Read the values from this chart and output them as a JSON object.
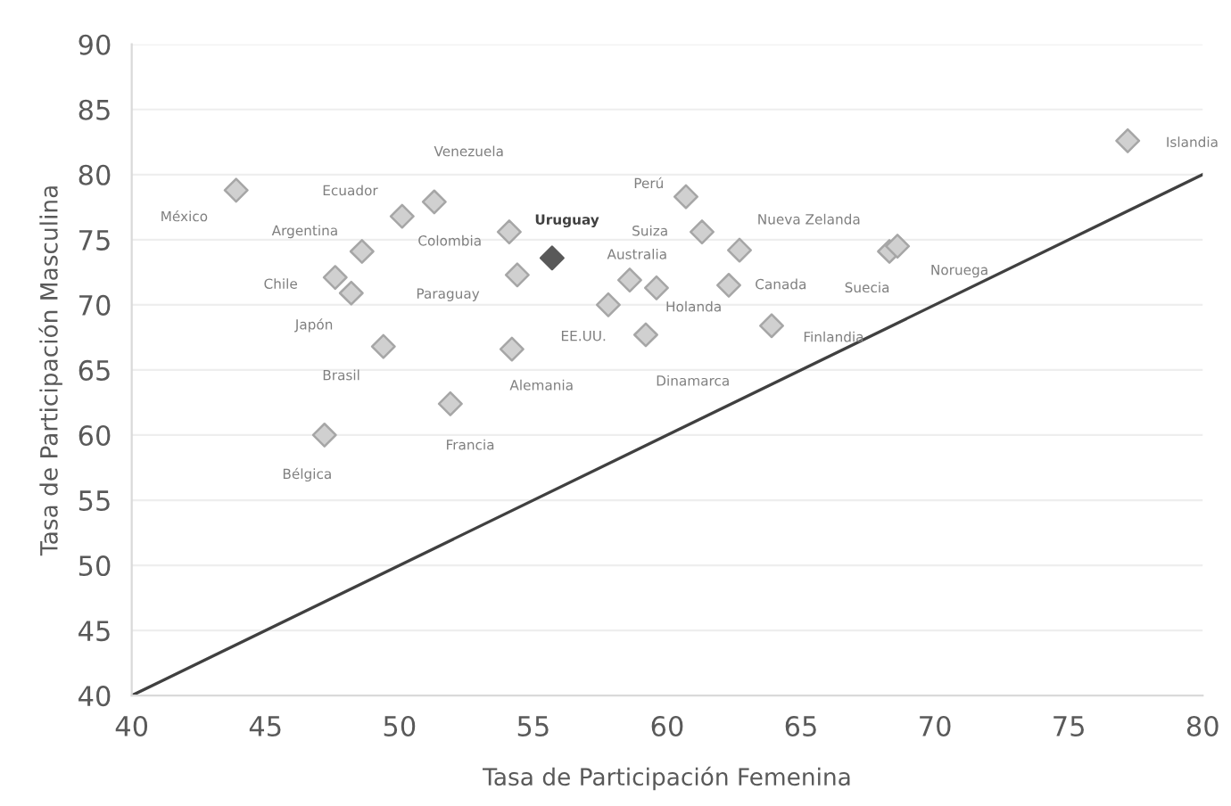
{
  "chart_data": {
    "type": "scatter",
    "xlabel": "Tasa de Participación Femenina",
    "ylabel": "Tasa de Participación Masculina",
    "xlim": [
      40,
      80
    ],
    "xticks": [
      40,
      45,
      50,
      55,
      60,
      65,
      70,
      75,
      80
    ],
    "ylim": [
      40,
      90
    ],
    "yticks": [
      40,
      45,
      50,
      55,
      60,
      65,
      70,
      75,
      80,
      85,
      90
    ],
    "grid": "y",
    "legend": false,
    "marker": "diamond",
    "series": [
      {
        "name": "México",
        "color": "#d0d0d0",
        "x": [
          43.9
        ],
        "values": [
          78.8
        ]
      },
      {
        "name": "Ecuador",
        "color": "#d0d0d0",
        "x": [
          50.1
        ],
        "values": [
          76.8
        ]
      },
      {
        "name": "Venezuela",
        "color": "#d0d0d0",
        "x": [
          51.3
        ],
        "values": [
          77.9
        ]
      },
      {
        "name": "Argentina",
        "color": "#d0d0d0",
        "x": [
          48.6
        ],
        "values": [
          74.1
        ]
      },
      {
        "name": "Chile",
        "color": "#d0d0d0",
        "x": [
          47.6
        ],
        "values": [
          72.1
        ]
      },
      {
        "name": "Japón",
        "color": "#d0d0d0",
        "x": [
          48.2
        ],
        "values": [
          70.9
        ]
      },
      {
        "name": "Brasil",
        "color": "#d0d0d0",
        "x": [
          49.4
        ],
        "values": [
          66.8
        ]
      },
      {
        "name": "Bélgica",
        "color": "#d0d0d0",
        "x": [
          47.2
        ],
        "values": [
          60.0
        ]
      },
      {
        "name": "Francia",
        "color": "#d0d0d0",
        "x": [
          51.9
        ],
        "values": [
          62.4
        ]
      },
      {
        "name": "Colombia",
        "color": "#d0d0d0",
        "x": [
          54.1
        ],
        "values": [
          75.6
        ]
      },
      {
        "name": "Uruguay",
        "color": "#595959",
        "x": [
          55.7
        ],
        "values": [
          73.6
        ]
      },
      {
        "name": "Paraguay",
        "color": "#d0d0d0",
        "x": [
          54.4
        ],
        "values": [
          72.3
        ]
      },
      {
        "name": "Alemania",
        "color": "#d0d0d0",
        "x": [
          54.2
        ],
        "values": [
          66.6
        ]
      },
      {
        "name": "Perú",
        "color": "#d0d0d0",
        "x": [
          60.7
        ],
        "values": [
          78.3
        ]
      },
      {
        "name": "Suiza",
        "color": "#d0d0d0",
        "x": [
          61.3
        ],
        "values": [
          75.6
        ]
      },
      {
        "name": "Nueva Zelanda",
        "color": "#d0d0d0",
        "x": [
          62.7
        ],
        "values": [
          74.2
        ]
      },
      {
        "name": "Australia",
        "color": "#d0d0d0",
        "x": [
          58.6
        ],
        "values": [
          71.9
        ]
      },
      {
        "name": "EE.UU.",
        "color": "#d0d0d0",
        "x": [
          57.8
        ],
        "values": [
          70.0
        ]
      },
      {
        "name": "Holanda",
        "color": "#d0d0d0",
        "x": [
          59.6
        ],
        "values": [
          71.3
        ]
      },
      {
        "name": "Canada",
        "color": "#d0d0d0",
        "x": [
          62.3
        ],
        "values": [
          71.5
        ]
      },
      {
        "name": "Dinamarca",
        "color": "#d0d0d0",
        "x": [
          59.2
        ],
        "values": [
          67.7
        ]
      },
      {
        "name": "Finlandia",
        "color": "#d0d0d0",
        "x": [
          63.9
        ],
        "values": [
          68.4
        ]
      },
      {
        "name": "Suecia",
        "color": "#d0d0d0",
        "x": [
          68.3
        ],
        "values": [
          74.1
        ]
      },
      {
        "name": "Noruega",
        "color": "#d0d0d0",
        "x": [
          68.6
        ],
        "values": [
          74.5
        ]
      },
      {
        "name": "Islandia",
        "color": "#d0d0d0",
        "x": [
          77.2
        ],
        "values": [
          82.6
        ]
      },
      {
        "type": "line",
        "marker": "none",
        "color": "#404040",
        "x": [
          40,
          80
        ],
        "values": [
          40,
          80
        ]
      }
    ]
  }
}
